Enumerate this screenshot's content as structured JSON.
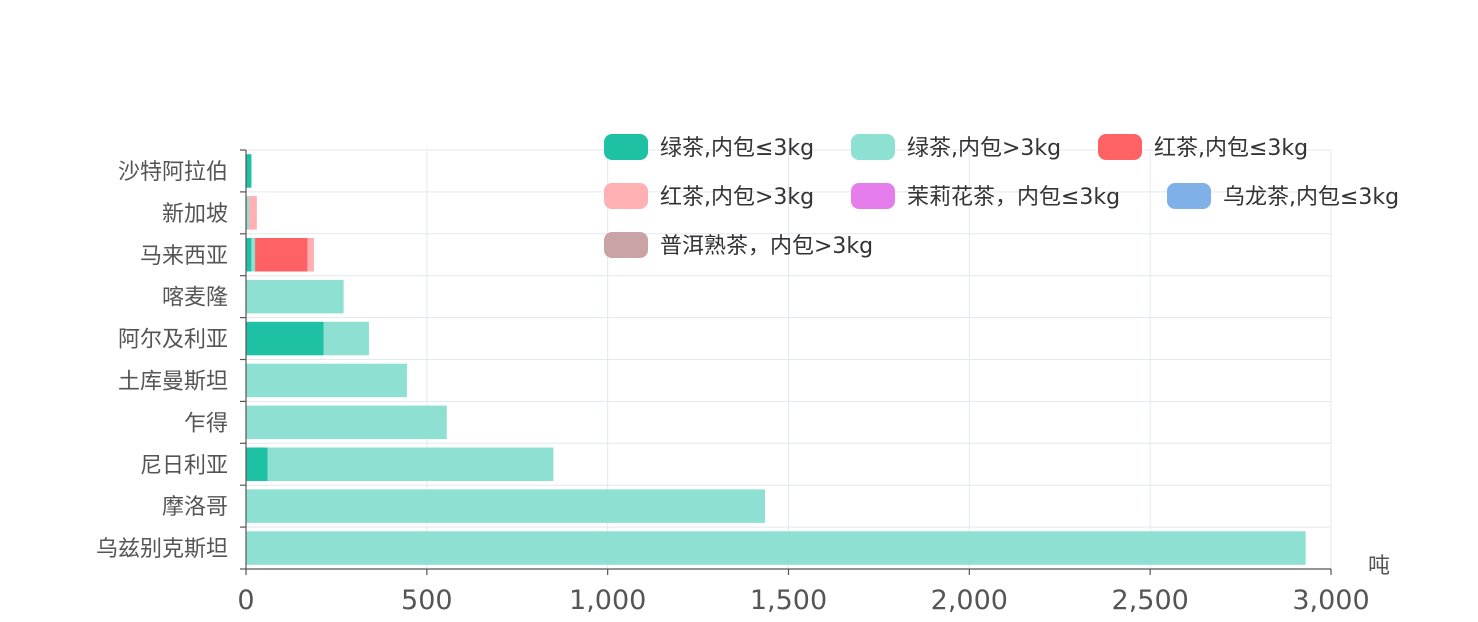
{
  "chart_data": {
    "type": "bar",
    "orientation": "horizontal",
    "stacked": true,
    "categories": [
      "乌兹别克斯坦",
      "摩洛哥",
      "尼日利亚",
      "乍得",
      "土库曼斯坦",
      "阿尔及利亚",
      "喀麦隆",
      "马来西亚",
      "新加坡",
      "沙特阿拉伯"
    ],
    "series": [
      {
        "name": "绿茶,内包≤3kg",
        "color": "#1fc1a5",
        "values": [
          0,
          0,
          60,
          0,
          0,
          215,
          0,
          15,
          0,
          15
        ]
      },
      {
        "name": "绿茶,内包>3kg",
        "color": "#8ee0d3",
        "values": [
          2930,
          1435,
          790,
          555,
          445,
          125,
          270,
          10,
          8,
          0
        ]
      },
      {
        "name": "红茶,内包≤3kg",
        "color": "#ff6265",
        "values": [
          0,
          0,
          0,
          0,
          0,
          0,
          0,
          145,
          0,
          0
        ]
      },
      {
        "name": "红茶,内包>3kg",
        "color": "#ffb0b2",
        "values": [
          0,
          0,
          0,
          0,
          0,
          0,
          0,
          18,
          22,
          0
        ]
      },
      {
        "name": "茉莉花茶，内包≤3kg",
        "color": "#e57eec",
        "values": [
          0,
          0,
          0,
          0,
          0,
          0,
          0,
          0,
          0,
          0
        ]
      },
      {
        "name": "乌龙茶,内包≤3kg",
        "color": "#7fb0e8",
        "values": [
          0,
          0,
          0,
          0,
          0,
          0,
          0,
          0,
          0,
          0
        ]
      },
      {
        "name": "普洱熟茶，内包>3kg",
        "color": "#c9a3a6",
        "values": [
          0,
          0,
          0,
          0,
          0,
          0,
          0,
          0,
          0,
          0
        ]
      }
    ],
    "x_axis": {
      "name": "吨",
      "range": [
        0,
        3000
      ],
      "ticks": [
        "0",
        "500",
        "1,000",
        "1,500",
        "2,000",
        "2,500",
        "3,000"
      ]
    },
    "grid": true,
    "legend_position": "top-right"
  }
}
